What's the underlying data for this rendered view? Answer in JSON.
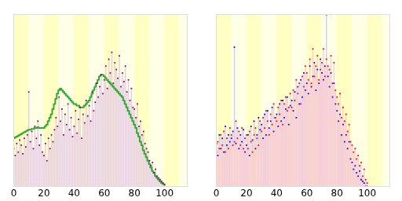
{
  "chart_data": [
    {
      "type": "bar",
      "x": [
        0,
        1,
        2,
        3,
        4,
        5,
        6,
        7,
        8,
        9,
        10,
        11,
        12,
        13,
        14,
        15,
        16,
        17,
        18,
        19,
        20,
        21,
        22,
        23,
        24,
        25,
        26,
        27,
        28,
        29,
        30,
        31,
        32,
        33,
        34,
        35,
        36,
        37,
        38,
        39,
        40,
        41,
        42,
        43,
        44,
        45,
        46,
        47,
        48,
        49,
        50,
        51,
        52,
        53,
        54,
        55,
        56,
        57,
        58,
        59,
        60,
        61,
        62,
        63,
        64,
        65,
        66,
        67,
        68,
        69,
        70,
        71,
        72,
        73,
        74,
        75,
        76,
        77,
        78,
        79,
        80,
        81,
        82,
        83,
        84,
        85,
        86,
        87,
        88,
        89,
        90,
        91,
        92,
        93,
        94,
        95,
        96,
        97,
        98,
        99,
        100
      ],
      "series": [
        {
          "type": "bar",
          "color": "#800080",
          "values": [
            22,
            18,
            25,
            20,
            27,
            24,
            19,
            28,
            23,
            30,
            55,
            26,
            32,
            22,
            35,
            28,
            38,
            24,
            30,
            20,
            18,
            25,
            15,
            28,
            22,
            30,
            26,
            33,
            40,
            35,
            52,
            38,
            45,
            30,
            42,
            36,
            48,
            33,
            40,
            29,
            35,
            44,
            31,
            39,
            46,
            28,
            42,
            37,
            50,
            41,
            47,
            38,
            55,
            44,
            49,
            60,
            52,
            58,
            65,
            54,
            62,
            70,
            57,
            74,
            66,
            78,
            60,
            72,
            68,
            63,
            76,
            58,
            66,
            61,
            70,
            55,
            62,
            50,
            57,
            46,
            45,
            40,
            48,
            35,
            38,
            30,
            32,
            25,
            22,
            20,
            15,
            12,
            14,
            8,
            10,
            6,
            5,
            4,
            3,
            2,
            1
          ]
        },
        {
          "type": "line",
          "color": "#33aa33",
          "values": [
            28,
            28.5,
            29,
            29.5,
            30,
            30.5,
            31,
            31.5,
            32,
            32.5,
            33,
            33,
            33.5,
            33.5,
            34,
            34,
            34.5,
            34,
            34,
            34,
            34,
            35,
            36,
            38,
            40,
            42,
            45,
            48,
            51,
            54,
            56,
            57,
            56,
            55,
            54,
            53,
            52,
            51,
            50,
            49,
            48,
            48,
            47,
            47,
            46,
            46,
            46,
            47,
            48,
            49,
            50,
            52,
            54,
            56,
            58,
            60,
            62,
            64,
            65,
            65,
            64,
            63,
            62,
            61,
            60,
            59,
            58,
            57,
            56,
            55,
            54,
            53,
            52,
            50,
            48,
            46,
            44,
            42,
            40,
            38,
            36,
            34,
            31,
            29,
            26,
            24,
            21,
            19,
            17,
            15,
            13,
            11,
            9,
            8,
            6,
            5,
            4,
            3,
            2,
            1.5,
            1
          ]
        }
      ],
      "xlim": [
        0,
        115
      ],
      "xticks": [
        0,
        20,
        40,
        60,
        80,
        100
      ],
      "ylim": [
        0,
        100
      ],
      "tick_labels": "x"
    },
    {
      "type": "bar",
      "x": [
        0,
        1,
        2,
        3,
        4,
        5,
        6,
        7,
        8,
        9,
        10,
        11,
        12,
        13,
        14,
        15,
        16,
        17,
        18,
        19,
        20,
        21,
        22,
        23,
        24,
        25,
        26,
        27,
        28,
        29,
        30,
        31,
        32,
        33,
        34,
        35,
        36,
        37,
        38,
        39,
        40,
        41,
        42,
        43,
        44,
        45,
        46,
        47,
        48,
        49,
        50,
        51,
        52,
        53,
        54,
        55,
        56,
        57,
        58,
        59,
        60,
        61,
        62,
        63,
        64,
        65,
        66,
        67,
        68,
        69,
        70,
        71,
        72,
        73,
        74,
        75,
        76,
        77,
        78,
        79,
        80,
        81,
        82,
        83,
        84,
        85,
        86,
        87,
        88,
        89,
        90,
        91,
        92,
        93,
        94,
        95,
        96,
        97,
        98,
        99,
        100
      ],
      "series": [
        {
          "color": "#0000ff",
          "values": [
            25,
            18,
            30,
            22,
            28,
            20,
            35,
            24,
            30,
            26,
            28,
            32,
            81,
            25,
            34,
            22,
            30,
            26,
            33,
            20,
            24,
            30,
            18,
            35,
            27,
            38,
            22,
            30,
            40,
            33,
            36,
            28,
            42,
            30,
            44,
            34,
            38,
            46,
            32,
            40,
            42,
            35,
            48,
            38,
            50,
            40,
            45,
            52,
            36,
            47,
            50,
            44,
            55,
            40,
            58,
            48,
            62,
            52,
            66,
            56,
            60,
            54,
            70,
            58,
            64,
            72,
            56,
            68,
            60,
            74,
            66,
            62,
            70,
            100,
            64,
            58,
            66,
            52,
            60,
            48,
            44,
            38,
            42,
            30,
            36,
            26,
            30,
            22,
            26,
            16,
            14,
            10,
            12,
            8,
            6,
            9,
            4,
            3,
            2,
            0,
            0
          ]
        },
        {
          "color": "#ff0000",
          "values": [
            20,
            26,
            22,
            30,
            24,
            32,
            20,
            28,
            22,
            34,
            30,
            24,
            26,
            38,
            28,
            32,
            24,
            34,
            22,
            28,
            30,
            22,
            32,
            26,
            20,
            30,
            34,
            28,
            24,
            38,
            32,
            40,
            34,
            44,
            38,
            30,
            42,
            36,
            48,
            40,
            38,
            46,
            42,
            50,
            36,
            48,
            52,
            44,
            46,
            54,
            46,
            56,
            50,
            62,
            54,
            60,
            48,
            64,
            58,
            70,
            66,
            62,
            74,
            60,
            80,
            64,
            70,
            76,
            62,
            68,
            72,
            80,
            64,
            74,
            70,
            68,
            76,
            60,
            72,
            56,
            52,
            48,
            54,
            40,
            46,
            38,
            42,
            32,
            36,
            26,
            24,
            20,
            22,
            16,
            18,
            12,
            14,
            6,
            10,
            4,
            2
          ]
        }
      ],
      "xlim": [
        0,
        115
      ],
      "xticks": [
        0,
        20,
        40,
        60,
        80,
        100
      ],
      "ylim": [
        0,
        100
      ],
      "tick_labels": "x"
    }
  ]
}
